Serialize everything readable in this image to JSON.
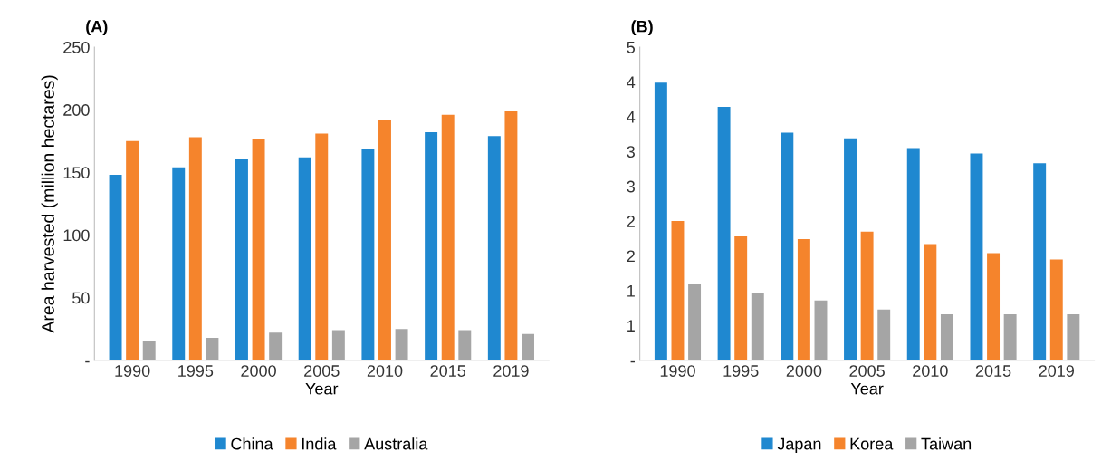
{
  "chart_data": [
    {
      "type": "bar",
      "title": "(A)",
      "xlabel": "Year",
      "ylabel": "Area harvested (million hectares)",
      "categories": [
        "1990",
        "1995",
        "2000",
        "2005",
        "2010",
        "2015",
        "2019"
      ],
      "series": [
        {
          "name": "China",
          "color": "#1f88d0",
          "values": [
            148,
            154,
            161,
            162,
            169,
            182,
            179
          ]
        },
        {
          "name": "India",
          "color": "#f5842c",
          "values": [
            175,
            178,
            177,
            181,
            192,
            196,
            199
          ]
        },
        {
          "name": "Australia",
          "color": "#a5a5a5",
          "values": [
            15,
            18,
            22,
            24,
            25,
            24,
            21
          ]
        }
      ],
      "ylim": [
        0,
        250
      ],
      "yticks": [
        {
          "value": 0,
          "label": "-"
        },
        50,
        100,
        150,
        200,
        250
      ],
      "grid": false,
      "legend": "bottom"
    },
    {
      "type": "bar",
      "title": "(B)",
      "xlabel": "Year",
      "categories": [
        "1990",
        "1995",
        "2000",
        "2005",
        "2010",
        "2015",
        "2019"
      ],
      "series": [
        {
          "name": "Japan",
          "color": "#1f88d0",
          "values": [
            3.99,
            3.64,
            3.27,
            3.19,
            3.05,
            2.97,
            2.83
          ]
        },
        {
          "name": "Korea",
          "color": "#f5842c",
          "values": [
            2.0,
            1.78,
            1.74,
            1.85,
            1.67,
            1.54,
            1.45
          ]
        },
        {
          "name": "Taiwan",
          "color": "#a5a5a5",
          "values": [
            1.09,
            0.97,
            0.86,
            0.73,
            0.66,
            0.66,
            0.66
          ]
        }
      ],
      "ylim": [
        0,
        4.5
      ],
      "yticks": [
        {
          "value": 0,
          "label": "-"
        },
        {
          "value": 0.5,
          "label": "1"
        },
        {
          "value": 1,
          "label": "1"
        },
        {
          "value": 1.5,
          "label": "2"
        },
        {
          "value": 2,
          "label": "2"
        },
        {
          "value": 2.5,
          "label": "3"
        },
        {
          "value": 3,
          "label": "3"
        },
        {
          "value": 3.5,
          "label": "4"
        },
        {
          "value": 4,
          "label": "4"
        },
        {
          "value": 4.5,
          "label": "5"
        }
      ],
      "grid": false,
      "legend": "bottom"
    }
  ]
}
